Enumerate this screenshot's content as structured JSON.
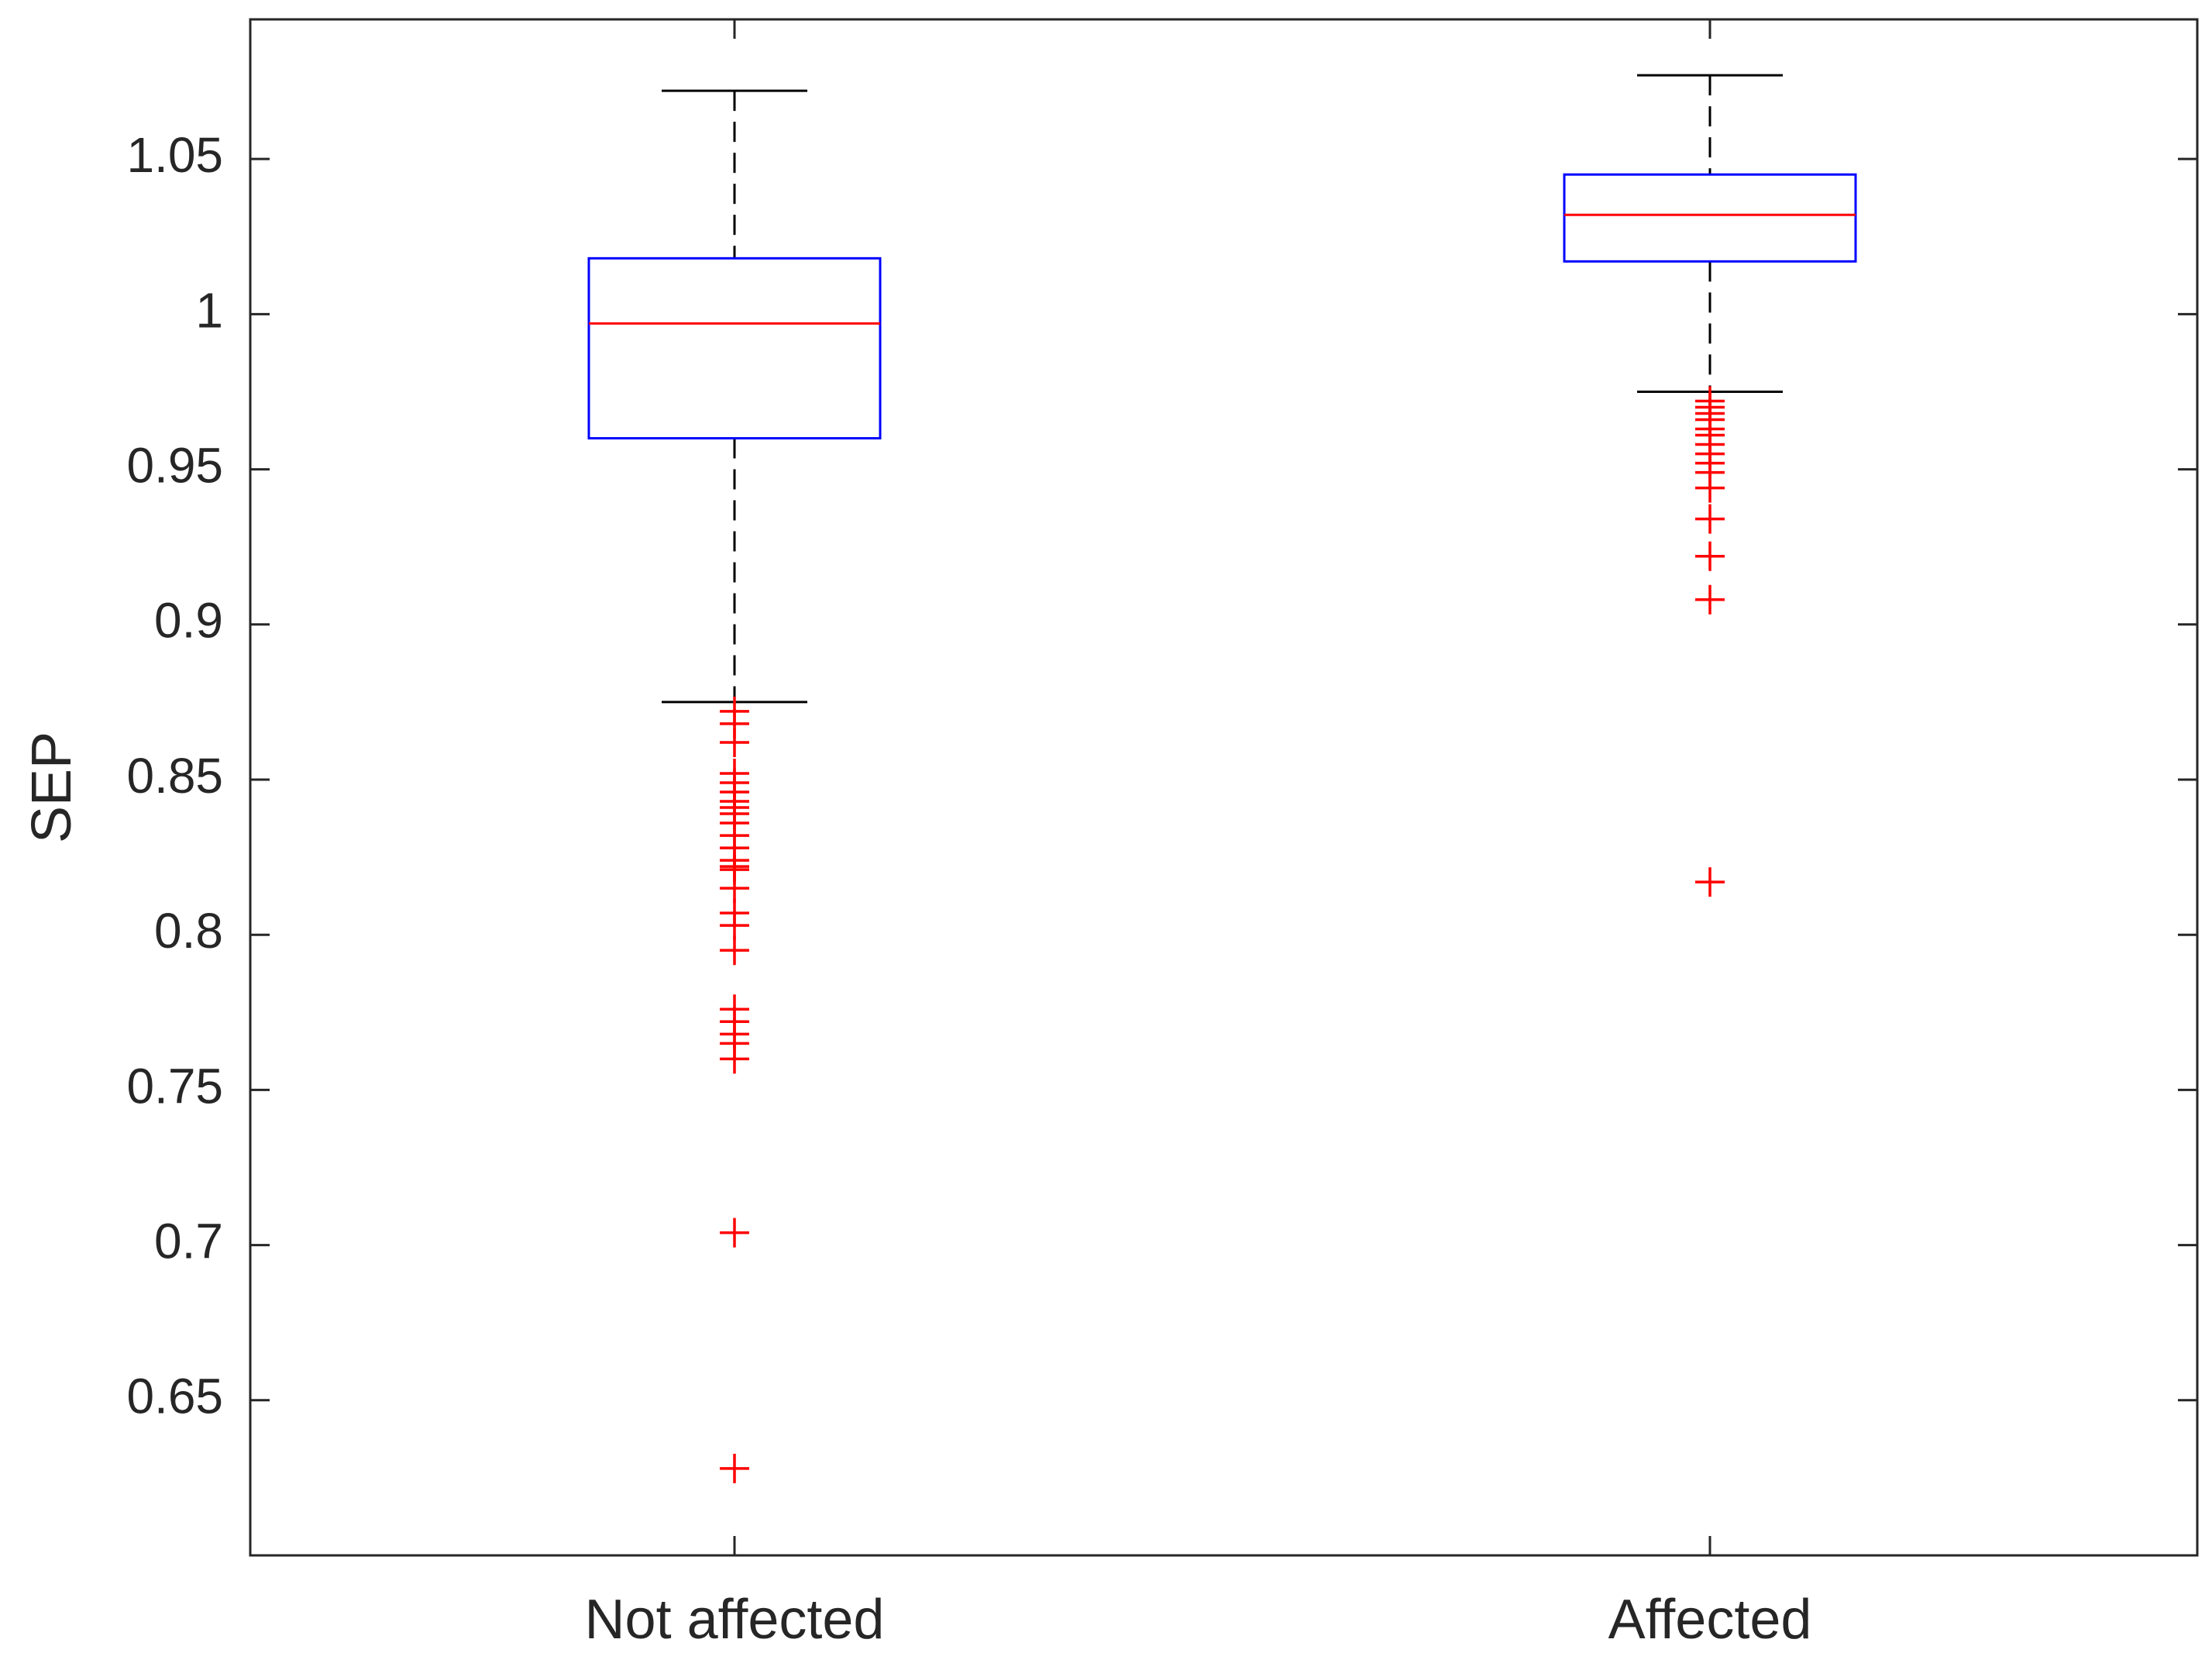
{
  "chart_data": {
    "type": "box",
    "title": "",
    "xlabel": "",
    "ylabel": "SEP",
    "ylim": [
      0.6,
      1.095
    ],
    "yticks": [
      0.65,
      0.7,
      0.75,
      0.8,
      0.85,
      0.9,
      0.95,
      1,
      1.05
    ],
    "ytick_labels": [
      "0.65",
      "0.7",
      "0.75",
      "0.8",
      "0.85",
      "0.9",
      "0.95",
      "1",
      "1.05"
    ],
    "grid": false,
    "colors": {
      "box": "#0000ff",
      "median": "#ff0000",
      "whisker": "#000000",
      "outlier": "#ff0000",
      "axis": "#262626"
    },
    "groups": [
      {
        "label": "Not affected",
        "whisker_high": 1.072,
        "q3": 1.018,
        "median": 0.997,
        "q1": 0.96,
        "whisker_low": 0.875,
        "outliers": [
          0.872,
          0.868,
          0.862,
          0.852,
          0.849,
          0.846,
          0.843,
          0.841,
          0.839,
          0.836,
          0.832,
          0.828,
          0.824,
          0.822,
          0.821,
          0.815,
          0.807,
          0.803,
          0.795,
          0.776,
          0.772,
          0.768,
          0.765,
          0.76,
          0.704,
          0.628
        ]
      },
      {
        "label": "Affected",
        "whisker_high": 1.077,
        "q3": 1.045,
        "median": 1.032,
        "q1": 1.017,
        "whisker_low": 0.975,
        "outliers": [
          0.972,
          0.97,
          0.968,
          0.966,
          0.963,
          0.961,
          0.958,
          0.955,
          0.952,
          0.949,
          0.944,
          0.934,
          0.922,
          0.908,
          0.817
        ]
      }
    ]
  }
}
